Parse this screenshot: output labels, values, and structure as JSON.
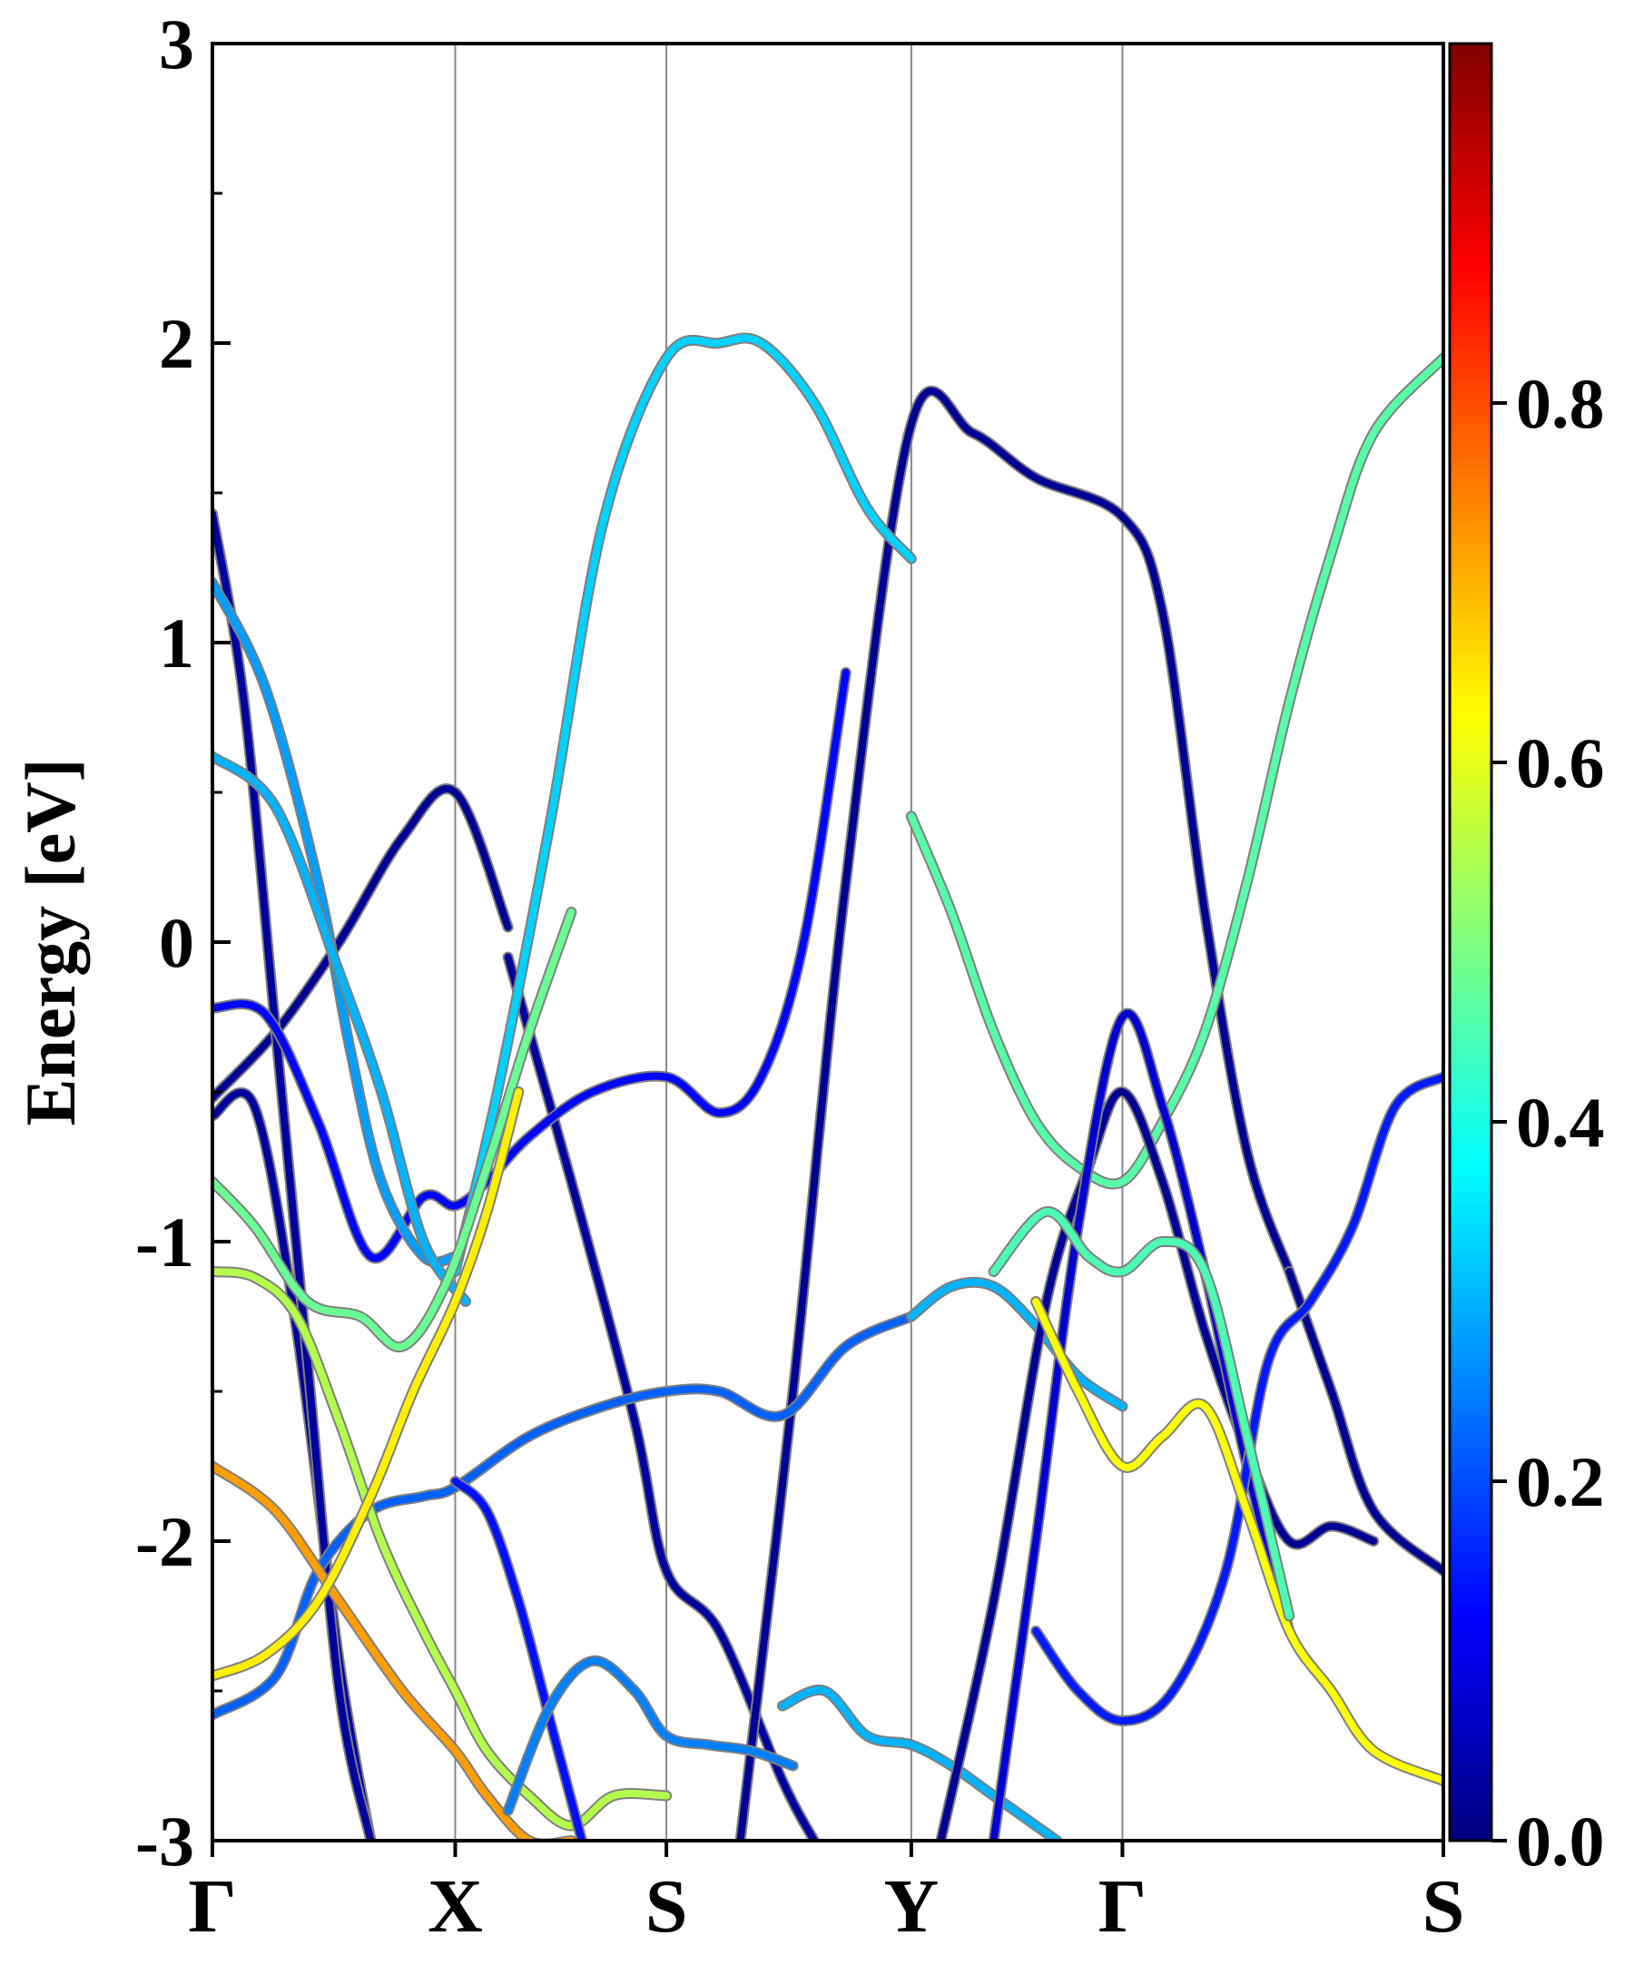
{
  "chart_data": {
    "type": "line",
    "ylabel": "Energy [eV]",
    "ylim": [
      -3,
      3
    ],
    "yticks": [
      "3",
      "2",
      "1",
      "0",
      "-1",
      "-2",
      "-3"
    ],
    "ytick_values": [
      3,
      2,
      1,
      0,
      -1,
      -2,
      -3
    ],
    "xlim": [
      0,
      5.83
    ],
    "kpath": [
      {
        "label": "Γ",
        "x": 0.0
      },
      {
        "label": "X",
        "x": 1.15
      },
      {
        "label": "S",
        "x": 2.15
      },
      {
        "label": "Y",
        "x": 3.31
      },
      {
        "label": "Γ",
        "x": 4.31
      },
      {
        "label": "S",
        "x": 5.83
      }
    ],
    "grid": "vertical lines at high-symmetry points",
    "colorbar": {
      "colormap": "jet",
      "range": [
        0.0,
        1.0
      ],
      "ticks": [
        "0.0",
        "0.2",
        "0.4",
        "0.6",
        "0.8"
      ],
      "tick_values": [
        0.0,
        0.2,
        0.4,
        0.6,
        0.8
      ]
    },
    "series": [
      {
        "weight": 0.02,
        "x": [
          0.0,
          0.3,
          0.6,
          0.9,
          1.15,
          1.4
        ],
        "y": [
          -0.52,
          -0.3,
          0.0,
          0.35,
          0.5,
          0.05
        ]
      },
      {
        "weight": 0.03,
        "x": [
          1.4,
          1.7,
          2.0,
          2.15,
          2.4,
          2.7,
          2.85
        ],
        "y": [
          -0.05,
          -0.8,
          -1.6,
          -2.1,
          -2.3,
          -2.8,
          -3.0
        ]
      },
      {
        "weight": 0.03,
        "x": [
          0.0,
          0.2,
          0.4,
          0.6,
          0.75
        ],
        "y": [
          -0.58,
          -0.55,
          -1.3,
          -2.4,
          -3.0
        ]
      },
      {
        "weight": 0.03,
        "x": [
          0.0,
          0.15,
          0.3,
          0.45,
          0.6,
          0.75
        ],
        "y": [
          1.43,
          0.8,
          -0.3,
          -1.4,
          -2.5,
          -3.0
        ]
      },
      {
        "weight": 0.13,
        "x": [
          0.0,
          0.25,
          0.5,
          0.75,
          1.0,
          1.15,
          1.3,
          1.5,
          1.8,
          2.15,
          2.4,
          2.6,
          2.8,
          3.0
        ],
        "y": [
          -0.22,
          -0.24,
          -0.6,
          -1.05,
          -0.85,
          -0.88,
          -0.8,
          -0.65,
          -0.5,
          -0.45,
          -0.57,
          -0.45,
          0.0,
          0.9
        ]
      },
      {
        "weight": 0.02,
        "x": [
          2.5,
          2.75,
          3.0,
          3.31,
          3.6,
          3.9,
          4.31,
          4.5,
          4.7,
          4.9,
          5.1
        ],
        "y": [
          -3.0,
          -1.5,
          0.2,
          1.73,
          1.7,
          1.55,
          1.42,
          1.1,
          0.1,
          -0.7,
          -1.1
        ]
      },
      {
        "weight": 0.02,
        "x": [
          5.1,
          5.3,
          5.5,
          5.83
        ],
        "y": [
          -1.1,
          -1.5,
          -1.9,
          -2.1
        ]
      },
      {
        "weight": 0.28,
        "x": [
          0.0,
          0.25,
          0.5,
          0.65,
          0.8,
          1.0,
          1.15
        ],
        "y": [
          1.2,
          0.85,
          0.2,
          -0.35,
          -0.8,
          -1.05,
          -1.05
        ]
      },
      {
        "weight": 0.33,
        "x": [
          1.15,
          1.35,
          1.6,
          1.85,
          2.15,
          2.4,
          2.6,
          2.85,
          3.1,
          3.31
        ],
        "y": [
          -1.1,
          -0.5,
          0.4,
          1.4,
          1.95,
          2.0,
          2.0,
          1.8,
          1.45,
          1.28
        ]
      },
      {
        "weight": 0.3,
        "x": [
          0.0,
          0.3,
          0.6,
          0.8,
          1.0,
          1.2
        ],
        "y": [
          0.62,
          0.45,
          -0.1,
          -0.5,
          -1.0,
          -1.2
        ]
      },
      {
        "weight": 0.22,
        "x": [
          0.0,
          0.3,
          0.5,
          0.75,
          1.0,
          1.15,
          1.5,
          1.85,
          2.15,
          2.4,
          2.7,
          3.0,
          3.31
        ],
        "y": [
          -2.58,
          -2.45,
          -2.1,
          -1.9,
          -1.85,
          -1.82,
          -1.65,
          -1.55,
          -1.5,
          -1.5,
          -1.58,
          -1.35,
          -1.25
        ]
      },
      {
        "weight": 0.3,
        "x": [
          3.31,
          3.5,
          3.7,
          3.9,
          4.1,
          4.31
        ],
        "y": [
          -1.25,
          -1.15,
          -1.15,
          -1.28,
          -1.45,
          -1.55
        ]
      },
      {
        "weight": 0.48,
        "x": [
          0.0,
          0.2,
          0.45,
          0.7,
          0.9,
          1.1,
          1.3,
          1.5,
          1.7
        ],
        "y": [
          -0.8,
          -0.95,
          -1.2,
          -1.25,
          -1.35,
          -1.15,
          -0.75,
          -0.3,
          0.1
        ]
      },
      {
        "weight": 0.46,
        "x": [
          3.31,
          3.5,
          3.7,
          3.9,
          4.1,
          4.31,
          4.5,
          4.7,
          4.9,
          5.1,
          5.3,
          5.5,
          5.83
        ],
        "y": [
          0.42,
          0.1,
          -0.3,
          -0.6,
          -0.75,
          -0.8,
          -0.6,
          -0.3,
          0.2,
          0.8,
          1.3,
          1.7,
          1.95
        ]
      },
      {
        "weight": 0.55,
        "x": [
          0.0,
          0.2,
          0.4,
          0.6,
          0.8,
          1.0,
          1.15,
          1.3,
          1.5,
          1.7,
          1.9,
          2.15
        ],
        "y": [
          -1.1,
          -1.12,
          -1.25,
          -1.6,
          -2.0,
          -2.3,
          -2.5,
          -2.7,
          -2.85,
          -2.95,
          -2.85,
          -2.85
        ]
      },
      {
        "weight": 0.72,
        "x": [
          0.0,
          0.3,
          0.6,
          0.9,
          1.15,
          1.3,
          1.5,
          1.7
        ],
        "y": [
          -1.75,
          -1.9,
          -2.2,
          -2.5,
          -2.7,
          -2.85,
          -3.0,
          -3.0
        ]
      },
      {
        "weight": 0.64,
        "x": [
          0.0,
          0.25,
          0.5,
          0.75,
          0.95,
          1.15,
          1.3,
          1.45
        ],
        "y": [
          -2.45,
          -2.38,
          -2.2,
          -1.85,
          -1.5,
          -1.2,
          -0.9,
          -0.5
        ]
      },
      {
        "weight": 0.14,
        "x": [
          1.15,
          1.3,
          1.45,
          1.6,
          1.75
        ],
        "y": [
          -1.8,
          -1.9,
          -2.2,
          -2.6,
          -3.0
        ]
      },
      {
        "weight": 0.25,
        "x": [
          1.4,
          1.6,
          1.8,
          2.0,
          2.15,
          2.35,
          2.55,
          2.75
        ],
        "y": [
          -2.9,
          -2.55,
          -2.4,
          -2.5,
          -2.65,
          -2.68,
          -2.7,
          -2.75
        ]
      },
      {
        "weight": 0.3,
        "x": [
          2.7,
          2.9,
          3.1,
          3.31,
          3.5,
          3.7,
          3.9,
          4.0
        ],
        "y": [
          -2.55,
          -2.5,
          -2.65,
          -2.68,
          -2.75,
          -2.85,
          -2.95,
          -3.0
        ]
      },
      {
        "weight": 0.02,
        "x": [
          3.45,
          3.7,
          3.95,
          4.15,
          4.31,
          4.5,
          4.7,
          4.9,
          5.1,
          5.3,
          5.5
        ],
        "y": [
          -3.0,
          -2.2,
          -1.2,
          -0.75,
          -0.5,
          -0.8,
          -1.3,
          -1.7,
          -2.0,
          -1.95,
          -2.0
        ]
      },
      {
        "weight": 0.08,
        "x": [
          3.7,
          3.9,
          4.1,
          4.31,
          4.5,
          4.7,
          4.9,
          5.1
        ],
        "y": [
          -3.0,
          -2.0,
          -0.95,
          -0.25,
          -0.55,
          -1.1,
          -1.75,
          -2.3
        ]
      },
      {
        "weight": 0.15,
        "x": [
          3.9,
          4.1,
          4.31,
          4.55,
          4.8,
          5.0,
          5.2,
          5.4,
          5.6,
          5.83
        ],
        "y": [
          -2.3,
          -2.5,
          -2.6,
          -2.5,
          -2.1,
          -1.4,
          -1.2,
          -0.95,
          -0.55,
          -0.45
        ]
      },
      {
        "weight": 0.62,
        "x": [
          3.9,
          4.1,
          4.31,
          4.5,
          4.7,
          4.9,
          5.1,
          5.3,
          5.5,
          5.83
        ],
        "y": [
          -1.2,
          -1.5,
          -1.75,
          -1.65,
          -1.55,
          -1.9,
          -2.3,
          -2.5,
          -2.7,
          -2.8
        ]
      },
      {
        "weight": 0.45,
        "x": [
          3.7,
          3.95,
          4.15,
          4.31,
          4.5,
          4.7,
          4.9,
          5.1
        ],
        "y": [
          -1.1,
          -0.9,
          -1.05,
          -1.1,
          -1.0,
          -1.1,
          -1.65,
          -2.25
        ]
      }
    ]
  }
}
